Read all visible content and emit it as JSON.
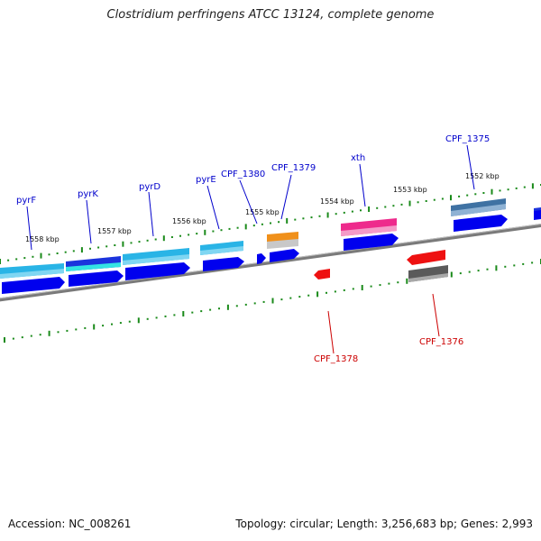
{
  "title": "Clostridium perfringens ATCC 13124, complete genome",
  "footer": {
    "accession": "Accession: NC_008261",
    "topology": "Topology: circular; Length: 3,256,683 bp; Genes: 2,993"
  },
  "colors": {
    "backbone": "#7a7a7a",
    "tick": "#1a8a1a",
    "tick_label": "#111111",
    "gene_label_forward": "#0000cc",
    "gene_label_reverse": "#cc0000",
    "blue": "#0000ee",
    "lightblue": "#29b4e6",
    "steel": "#3f72a3",
    "orange": "#f0901a",
    "pink": "#ee2a8c",
    "red": "#ee1111",
    "grey": "#5a5a5a"
  },
  "ticks": [
    {
      "label": "1558 kbp"
    },
    {
      "label": "1557 kbp"
    },
    {
      "label": "1556 kbp"
    },
    {
      "label": "1555 kbp"
    },
    {
      "label": "1554 kbp"
    },
    {
      "label": "1553 kbp"
    },
    {
      "label": "1552 kbp"
    }
  ],
  "gene_labels": [
    {
      "label": "pyrF",
      "strand": "forward"
    },
    {
      "label": "pyrK",
      "strand": "forward"
    },
    {
      "label": "pyrD",
      "strand": "forward"
    },
    {
      "label": "pyrE",
      "strand": "forward"
    },
    {
      "label": "CPF_1380",
      "strand": "forward"
    },
    {
      "label": "CPF_1379",
      "strand": "forward"
    },
    {
      "label": "xth",
      "strand": "forward"
    },
    {
      "label": "CPF_1375",
      "strand": "forward"
    },
    {
      "label": "CPF_1378",
      "strand": "reverse"
    },
    {
      "label": "CPF_1376",
      "strand": "reverse"
    }
  ]
}
